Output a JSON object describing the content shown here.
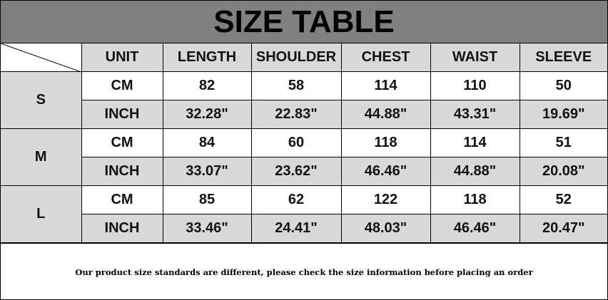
{
  "title": "SIZE TABLE",
  "headers": [
    "UNIT",
    "LENGTH",
    "SHOULDER",
    "CHEST",
    "WAIST",
    "SLEEVE"
  ],
  "sizes": [
    {
      "size": "S",
      "rows": [
        {
          "unit": "CM",
          "values": [
            "82",
            "58",
            "114",
            "110",
            "50"
          ]
        },
        {
          "unit": "INCH",
          "values": [
            "32.28\"",
            "22.83\"",
            "44.88\"",
            "43.31\"",
            "19.69\""
          ]
        }
      ]
    },
    {
      "size": "M",
      "rows": [
        {
          "unit": "CM",
          "values": [
            "84",
            "60",
            "118",
            "114",
            "51"
          ]
        },
        {
          "unit": "INCH",
          "values": [
            "33.07\"",
            "23.62\"",
            "46.46\"",
            "44.88\"",
            "20.08\""
          ]
        }
      ]
    },
    {
      "size": "L",
      "rows": [
        {
          "unit": "CM",
          "values": [
            "85",
            "62",
            "122",
            "118",
            "52"
          ]
        },
        {
          "unit": "INCH",
          "values": [
            "33.46\"",
            "24.41\"",
            "48.03\"",
            "46.46\"",
            "20.47\""
          ]
        }
      ]
    }
  ],
  "footer": "Our product size standards are different, please check the size information before placing an order",
  "colors": {
    "title_bg": "#808080",
    "header_bg": "#d9d9d9",
    "inch_row_bg": "#d9d9d9",
    "cm_row_bg": "#ffffff"
  }
}
